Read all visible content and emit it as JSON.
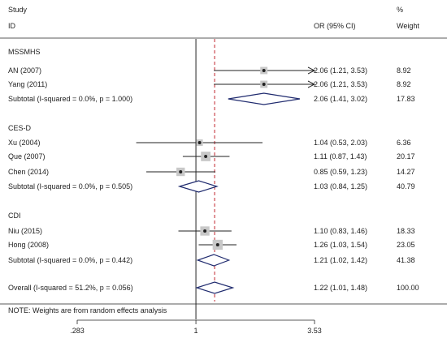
{
  "chart_data": {
    "type": "forest",
    "header": {
      "study": "Study",
      "id": "ID",
      "estimate_column": "OR (95% CI)",
      "weight_symbol": "%",
      "weight_column": "Weight"
    },
    "x_scale": "log",
    "x_ticks": [
      0.283,
      1,
      3.53
    ],
    "x_tick_labels": [
      ".283",
      "1",
      "3.53"
    ],
    "null_line": 1,
    "overall_line": 1.22,
    "groups": [
      {
        "name": "MSSMHS",
        "studies": [
          {
            "label": "AN (2007)",
            "or": 2.06,
            "lo": 1.21,
            "hi": 3.53,
            "text": "2.06 (1.21, 3.53)",
            "weight": "8.92",
            "arrow_right": true
          },
          {
            "label": "Yang (2011)",
            "or": 2.06,
            "lo": 1.21,
            "hi": 3.53,
            "text": "2.06 (1.21, 3.53)",
            "weight": "8.92",
            "arrow_right": true
          }
        ],
        "subtotal": {
          "label": "Subtotal  (I-squared = 0.0%, p = 1.000)",
          "or": 2.06,
          "lo": 1.41,
          "hi": 3.02,
          "text": "2.06 (1.41, 3.02)",
          "weight": "17.83"
        }
      },
      {
        "name": "CES-D",
        "studies": [
          {
            "label": "Xu (2004)",
            "or": 1.04,
            "lo": 0.53,
            "hi": 2.03,
            "text": "1.04 (0.53, 2.03)",
            "weight": "6.36",
            "arrow_right": false
          },
          {
            "label": "Que (2007)",
            "or": 1.11,
            "lo": 0.87,
            "hi": 1.43,
            "text": "1.11 (0.87, 1.43)",
            "weight": "20.17",
            "arrow_right": false
          },
          {
            "label": "Chen (2014)",
            "or": 0.85,
            "lo": 0.59,
            "hi": 1.23,
            "text": "0.85 (0.59, 1.23)",
            "weight": "14.27",
            "arrow_right": false
          }
        ],
        "subtotal": {
          "label": "Subtotal  (I-squared = 0.0%, p = 0.505)",
          "or": 1.03,
          "lo": 0.84,
          "hi": 1.25,
          "text": "1.03 (0.84, 1.25)",
          "weight": "40.79"
        }
      },
      {
        "name": "CDI",
        "studies": [
          {
            "label": "Niu (2015)",
            "or": 1.1,
            "lo": 0.83,
            "hi": 1.46,
            "text": "1.10 (0.83, 1.46)",
            "weight": "18.33",
            "arrow_right": false
          },
          {
            "label": "Hong (2008)",
            "or": 1.26,
            "lo": 1.03,
            "hi": 1.54,
            "text": "1.26 (1.03, 1.54)",
            "weight": "23.05",
            "arrow_right": false
          }
        ],
        "subtotal": {
          "label": "Subtotal  (I-squared = 0.0%, p = 0.442)",
          "or": 1.21,
          "lo": 1.02,
          "hi": 1.42,
          "text": "1.21 (1.02, 1.42)",
          "weight": "41.38"
        }
      }
    ],
    "overall": {
      "label": "Overall  (I-squared = 51.2%, p = 0.056)",
      "or": 1.22,
      "lo": 1.01,
      "hi": 1.48,
      "text": "1.22 (1.01, 1.48)",
      "weight": "100.00"
    },
    "note": "NOTE: Weights are from random effects analysis",
    "colors": {
      "diamond": "#1f2a6e",
      "overall_line": "#c0262d",
      "box": "#c8c8c8",
      "ink": "#222222"
    }
  }
}
